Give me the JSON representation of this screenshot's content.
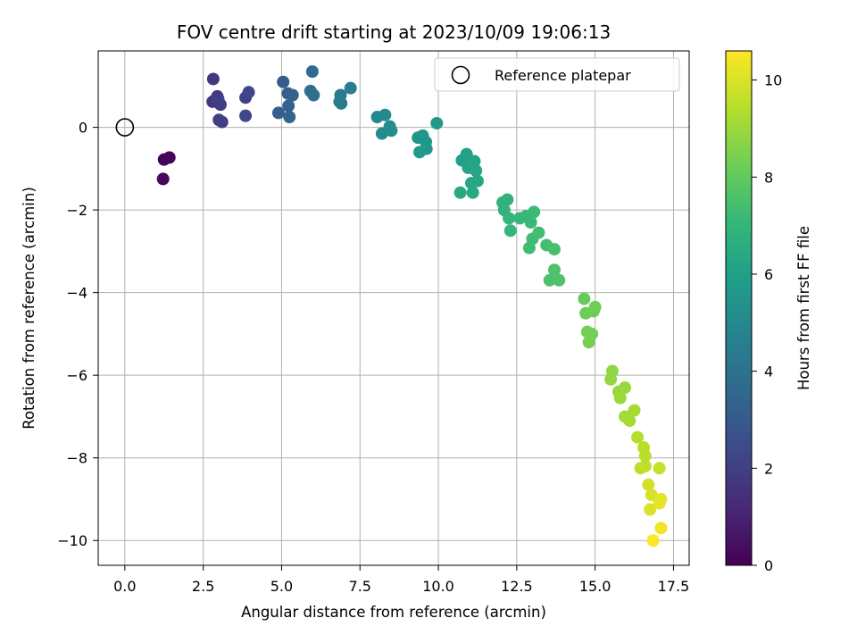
{
  "chart_data": {
    "type": "scatter",
    "title": "FOV centre drift starting at 2023/10/09 19:06:13",
    "xlabel": "Angular distance from reference (arcmin)",
    "ylabel": "Rotation from reference (arcmin)",
    "xlim": [
      -0.85,
      18.0
    ],
    "ylim": [
      -10.6,
      1.85
    ],
    "x_ticks": [
      0.0,
      2.5,
      5.0,
      7.5,
      10.0,
      12.5,
      15.0,
      17.5
    ],
    "x_tick_labels": [
      "0.0",
      "2.5",
      "5.0",
      "7.5",
      "10.0",
      "12.5",
      "15.0",
      "17.5"
    ],
    "y_ticks": [
      0,
      -2,
      -4,
      -6,
      -8,
      -10
    ],
    "y_tick_labels": [
      "0",
      "−2",
      "−4",
      "−6",
      "−8",
      "−10"
    ],
    "grid": true,
    "legend": {
      "entries": [
        "Reference platepar"
      ],
      "placement": "top-right"
    },
    "reference_point": {
      "x": 0.0,
      "y": 0.0
    },
    "colorbar": {
      "label": "Hours from first FF file",
      "colormap": "viridis",
      "range": [
        0,
        10.6
      ],
      "ticks": [
        0,
        2,
        4,
        6,
        8,
        10
      ],
      "tick_labels": [
        "0",
        "2",
        "4",
        "6",
        "8",
        "10"
      ],
      "stops": [
        "#440154",
        "#482878",
        "#3e4989",
        "#31688e",
        "#26828e",
        "#1f9e89",
        "#35b779",
        "#6ece58",
        "#b5de2b",
        "#fde725"
      ]
    },
    "series": [
      {
        "points": [
          {
            "x": 1.25,
            "y": -0.78,
            "t": 0.1
          },
          {
            "x": 1.42,
            "y": -0.73,
            "t": 0.15
          },
          {
            "x": 1.22,
            "y": -1.25,
            "t": 0.2
          },
          {
            "x": 2.82,
            "y": 1.17,
            "t": 1.7
          },
          {
            "x": 2.8,
            "y": 0.62,
            "t": 1.75
          },
          {
            "x": 2.95,
            "y": 0.75,
            "t": 1.8
          },
          {
            "x": 3.05,
            "y": 0.55,
            "t": 1.85
          },
          {
            "x": 3.0,
            "y": 0.18,
            "t": 1.9
          },
          {
            "x": 3.1,
            "y": 0.13,
            "t": 1.95
          },
          {
            "x": 2.98,
            "y": 0.68,
            "t": 2.0
          },
          {
            "x": 3.85,
            "y": 0.72,
            "t": 2.1
          },
          {
            "x": 3.95,
            "y": 0.85,
            "t": 2.2
          },
          {
            "x": 3.85,
            "y": 0.28,
            "t": 2.3
          },
          {
            "x": 5.05,
            "y": 1.1,
            "t": 3.0
          },
          {
            "x": 4.9,
            "y": 0.35,
            "t": 3.1
          },
          {
            "x": 5.2,
            "y": 0.82,
            "t": 3.2
          },
          {
            "x": 5.35,
            "y": 0.78,
            "t": 3.3
          },
          {
            "x": 5.22,
            "y": 0.52,
            "t": 3.35
          },
          {
            "x": 5.25,
            "y": 0.25,
            "t": 3.4
          },
          {
            "x": 5.98,
            "y": 1.35,
            "t": 3.7
          },
          {
            "x": 5.92,
            "y": 0.88,
            "t": 3.8
          },
          {
            "x": 6.02,
            "y": 0.78,
            "t": 3.85
          },
          {
            "x": 6.88,
            "y": 0.78,
            "t": 4.3
          },
          {
            "x": 6.85,
            "y": 0.62,
            "t": 4.4
          },
          {
            "x": 6.9,
            "y": 0.58,
            "t": 4.45
          },
          {
            "x": 7.2,
            "y": 0.95,
            "t": 4.5
          },
          {
            "x": 8.05,
            "y": 0.25,
            "t": 5.0
          },
          {
            "x": 8.3,
            "y": 0.3,
            "t": 5.05
          },
          {
            "x": 8.2,
            "y": -0.15,
            "t": 5.1
          },
          {
            "x": 8.45,
            "y": 0.02,
            "t": 5.15
          },
          {
            "x": 8.5,
            "y": -0.08,
            "t": 5.2
          },
          {
            "x": 9.35,
            "y": -0.25,
            "t": 5.5
          },
          {
            "x": 9.5,
            "y": -0.2,
            "t": 5.55
          },
          {
            "x": 9.6,
            "y": -0.35,
            "t": 5.6
          },
          {
            "x": 9.62,
            "y": -0.52,
            "t": 5.65
          },
          {
            "x": 9.4,
            "y": -0.6,
            "t": 5.7
          },
          {
            "x": 9.95,
            "y": 0.1,
            "t": 5.75
          },
          {
            "x": 10.75,
            "y": -0.8,
            "t": 6.0
          },
          {
            "x": 10.9,
            "y": -0.65,
            "t": 6.05
          },
          {
            "x": 10.95,
            "y": -0.98,
            "t": 6.1
          },
          {
            "x": 11.15,
            "y": -0.82,
            "t": 6.15
          },
          {
            "x": 11.2,
            "y": -1.05,
            "t": 6.2
          },
          {
            "x": 11.25,
            "y": -1.3,
            "t": 6.25
          },
          {
            "x": 11.05,
            "y": -1.35,
            "t": 6.3
          },
          {
            "x": 11.1,
            "y": -1.58,
            "t": 6.35
          },
          {
            "x": 10.7,
            "y": -1.58,
            "t": 6.4
          },
          {
            "x": 12.05,
            "y": -1.82,
            "t": 6.8
          },
          {
            "x": 12.2,
            "y": -1.75,
            "t": 6.85
          },
          {
            "x": 12.1,
            "y": -2.0,
            "t": 6.9
          },
          {
            "x": 12.25,
            "y": -2.2,
            "t": 6.95
          },
          {
            "x": 12.3,
            "y": -2.5,
            "t": 7.0
          },
          {
            "x": 12.6,
            "y": -2.2,
            "t": 7.05
          },
          {
            "x": 12.8,
            "y": -2.15,
            "t": 7.1
          },
          {
            "x": 12.95,
            "y": -2.3,
            "t": 7.15
          },
          {
            "x": 13.05,
            "y": -2.05,
            "t": 7.2
          },
          {
            "x": 13.0,
            "y": -2.7,
            "t": 7.25
          },
          {
            "x": 12.9,
            "y": -2.92,
            "t": 7.3
          },
          {
            "x": 13.2,
            "y": -2.55,
            "t": 7.35
          },
          {
            "x": 13.45,
            "y": -2.85,
            "t": 7.4
          },
          {
            "x": 13.7,
            "y": -2.95,
            "t": 7.45
          },
          {
            "x": 13.55,
            "y": -3.7,
            "t": 7.55
          },
          {
            "x": 13.7,
            "y": -3.45,
            "t": 7.6
          },
          {
            "x": 13.85,
            "y": -3.7,
            "t": 7.65
          },
          {
            "x": 14.65,
            "y": -4.15,
            "t": 8.1
          },
          {
            "x": 14.7,
            "y": -4.5,
            "t": 8.15
          },
          {
            "x": 14.95,
            "y": -4.45,
            "t": 8.2
          },
          {
            "x": 15.0,
            "y": -4.35,
            "t": 8.25
          },
          {
            "x": 14.75,
            "y": -4.95,
            "t": 8.3
          },
          {
            "x": 14.9,
            "y": -5.0,
            "t": 8.35
          },
          {
            "x": 14.8,
            "y": -5.2,
            "t": 8.4
          },
          {
            "x": 15.55,
            "y": -5.9,
            "t": 8.8
          },
          {
            "x": 15.5,
            "y": -6.1,
            "t": 8.85
          },
          {
            "x": 15.75,
            "y": -6.4,
            "t": 8.9
          },
          {
            "x": 15.95,
            "y": -6.3,
            "t": 8.95
          },
          {
            "x": 15.8,
            "y": -6.55,
            "t": 9.0
          },
          {
            "x": 15.95,
            "y": -7.0,
            "t": 9.1
          },
          {
            "x": 16.25,
            "y": -6.85,
            "t": 9.15
          },
          {
            "x": 16.1,
            "y": -7.1,
            "t": 9.2
          },
          {
            "x": 16.35,
            "y": -7.5,
            "t": 9.4
          },
          {
            "x": 16.55,
            "y": -7.75,
            "t": 9.45
          },
          {
            "x": 16.6,
            "y": -7.95,
            "t": 9.5
          },
          {
            "x": 16.45,
            "y": -8.25,
            "t": 9.55
          },
          {
            "x": 16.6,
            "y": -8.2,
            "t": 9.6
          },
          {
            "x": 17.05,
            "y": -8.25,
            "t": 9.7
          },
          {
            "x": 16.7,
            "y": -8.65,
            "t": 9.9
          },
          {
            "x": 16.8,
            "y": -8.9,
            "t": 10.0
          },
          {
            "x": 16.75,
            "y": -9.25,
            "t": 10.05
          },
          {
            "x": 17.1,
            "y": -9.0,
            "t": 10.15
          },
          {
            "x": 17.05,
            "y": -9.1,
            "t": 10.2
          },
          {
            "x": 17.1,
            "y": -9.7,
            "t": 10.4
          },
          {
            "x": 16.85,
            "y": -10.0,
            "t": 10.55
          }
        ]
      }
    ]
  }
}
